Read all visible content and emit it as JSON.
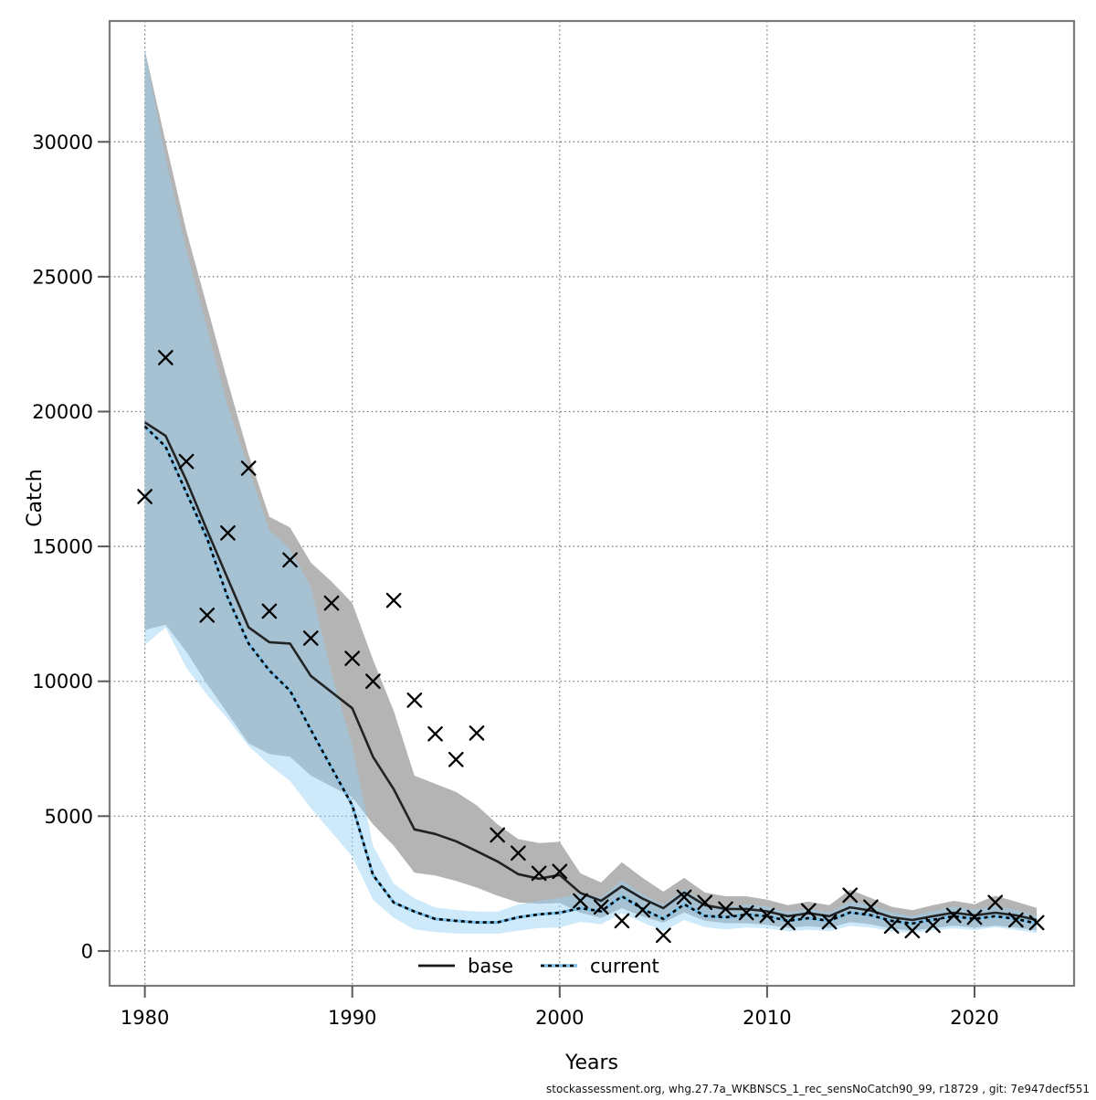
{
  "caption": "stockassessment.org, whg.27.7a_WKBNSCS_1_rec_sensNoCatch90_99, r18729 , git: 7e947decf551",
  "axes": {
    "x_label": "Years",
    "y_label": "Catch"
  },
  "legend": {
    "base_label": "base",
    "current_label": "current"
  },
  "colors": {
    "base_line": "#161616",
    "base_band": "#b4b4b4",
    "current_line": "#000000",
    "current_underlay": "#77bfe9",
    "current_band": "rgba(150,210,245,0.47)",
    "marker": "#000000",
    "grid": "#707070",
    "frame": "#7a7a7a",
    "tick": "#5a5a5a"
  },
  "chart_data": {
    "type": "line",
    "title": "",
    "xlabel": "Years",
    "ylabel": "Catch",
    "grid": "dotted",
    "legend_position": "bottom-center",
    "x": [
      1980,
      1981,
      1982,
      1983,
      1984,
      1985,
      1986,
      1987,
      1988,
      1989,
      1990,
      1991,
      1992,
      1993,
      1994,
      1995,
      1996,
      1997,
      1998,
      1999,
      2000,
      2001,
      2002,
      2003,
      2004,
      2005,
      2006,
      2007,
      2008,
      2009,
      2010,
      2011,
      2012,
      2013,
      2014,
      2015,
      2016,
      2017,
      2018,
      2019,
      2020,
      2021,
      2022,
      2023
    ],
    "xlim": [
      1978.3,
      2024.8
    ],
    "ylim": [
      -1290,
      34480
    ],
    "x_ticks": [
      1980,
      1990,
      2000,
      2010,
      2020
    ],
    "y_ticks": [
      0,
      5000,
      10000,
      15000,
      20000,
      25000,
      30000
    ],
    "series": [
      {
        "name": "base",
        "line_style": "solid",
        "values": [
          19600,
          19100,
          17450,
          15600,
          13800,
          12000,
          11450,
          11400,
          10200,
          9600,
          9000,
          7200,
          6000,
          4510,
          4340,
          4070,
          3700,
          3320,
          2850,
          2680,
          2820,
          2150,
          1860,
          2400,
          1940,
          1590,
          2170,
          1700,
          1560,
          1560,
          1470,
          1290,
          1400,
          1290,
          1620,
          1500,
          1250,
          1150,
          1290,
          1420,
          1320,
          1420,
          1320,
          1150
        ],
        "hi": [
          33400,
          30000,
          26700,
          23900,
          21100,
          18400,
          16100,
          15700,
          14400,
          13700,
          12900,
          10800,
          8900,
          6500,
          6200,
          5900,
          5400,
          4700,
          4150,
          4000,
          4050,
          2880,
          2540,
          3290,
          2710,
          2200,
          2710,
          2170,
          2030,
          2030,
          1900,
          1700,
          1830,
          1700,
          2270,
          1970,
          1640,
          1510,
          1700,
          1860,
          1730,
          2050,
          1830,
          1600
        ],
        "lo": [
          11900,
          12100,
          11100,
          9900,
          8800,
          7700,
          7300,
          7200,
          6500,
          6100,
          5700,
          4700,
          3900,
          2900,
          2800,
          2600,
          2350,
          2050,
          1800,
          1750,
          1780,
          1420,
          1230,
          1590,
          1280,
          1050,
          1430,
          1120,
          1030,
          1030,
          970,
          850,
          920,
          850,
          1070,
          990,
          830,
          760,
          850,
          940,
          870,
          940,
          870,
          760
        ]
      },
      {
        "name": "current",
        "line_style": "dotted",
        "values": [
          19450,
          18700,
          17000,
          15300,
          13100,
          11400,
          10400,
          9650,
          8200,
          6800,
          5400,
          2820,
          1800,
          1460,
          1190,
          1120,
          1060,
          1060,
          1250,
          1360,
          1420,
          1590,
          1470,
          2030,
          1560,
          1190,
          1730,
          1300,
          1250,
          1350,
          1290,
          1120,
          1220,
          1120,
          1430,
          1330,
          1120,
          1020,
          1160,
          1290,
          1190,
          1290,
          1190,
          1020
        ],
        "hi": [
          33400,
          29400,
          26000,
          23100,
          20200,
          17900,
          15600,
          14900,
          13500,
          10300,
          7600,
          3900,
          2500,
          1950,
          1620,
          1520,
          1460,
          1460,
          1720,
          1870,
          1950,
          2170,
          1980,
          2610,
          2100,
          1700,
          2300,
          1760,
          1620,
          1730,
          1650,
          1430,
          1560,
          1430,
          1830,
          1700,
          1430,
          1300,
          1480,
          1650,
          1520,
          1690,
          1520,
          1300
        ],
        "lo": [
          11350,
          12000,
          10500,
          9500,
          8600,
          7600,
          6900,
          6300,
          5300,
          4400,
          3500,
          1900,
          1230,
          800,
          700,
          650,
          640,
          640,
          750,
          850,
          870,
          1080,
          990,
          1400,
          1060,
          740,
          1150,
          880,
          800,
          870,
          840,
          730,
          790,
          730,
          930,
          870,
          730,
          670,
          760,
          840,
          780,
          880,
          780,
          670
        ]
      }
    ],
    "observed_catches": {
      "marker": "x",
      "values": [
        16850,
        22000,
        18150,
        12450,
        15500,
        17900,
        12600,
        14500,
        11600,
        12900,
        10850,
        10000,
        13000,
        9300,
        8050,
        7100,
        8080,
        4300,
        3630,
        2880,
        2950,
        1860,
        1630,
        1120,
        1520,
        580,
        2000,
        1800,
        1560,
        1420,
        1320,
        1050,
        1490,
        1080,
        2070,
        1630,
        920,
        750,
        950,
        1320,
        1250,
        1800,
        1150,
        1050
      ]
    }
  }
}
